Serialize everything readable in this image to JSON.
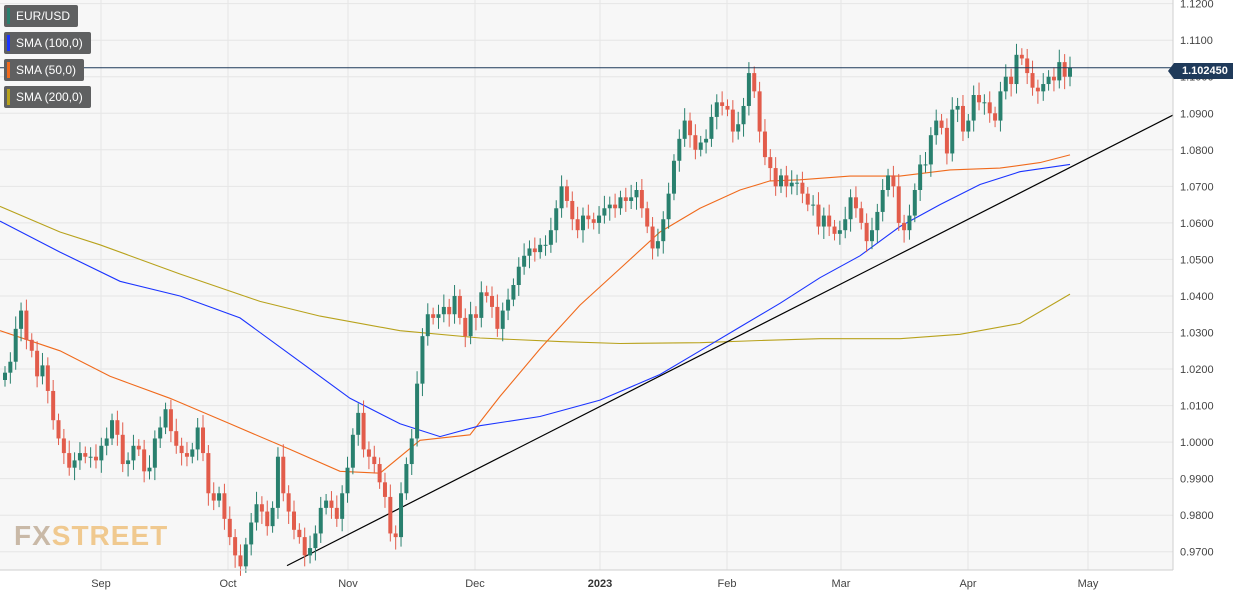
{
  "legend": [
    {
      "label": "EUR/USD",
      "color": "#29806e"
    },
    {
      "label": "SMA (100,0)",
      "color": "#1b34ff"
    },
    {
      "label": "SMA (50,0)",
      "color": "#f06a1c"
    },
    {
      "label": "SMA (200,0)",
      "color": "#b8a21c"
    }
  ],
  "current_price": "1.102450",
  "logo": {
    "part1": "FX",
    "part2": "STREET"
  },
  "chart_data": {
    "type": "candlestick",
    "y_axis": {
      "min": 0.965,
      "max": 1.121,
      "ticks": [
        "1.1200",
        "1.1100",
        "1.1000",
        "1.0900",
        "1.0800",
        "1.0700",
        "1.0600",
        "1.0500",
        "1.0400",
        "1.0300",
        "1.0200",
        "1.0100",
        "1.0000",
        "0.9900",
        "0.9800",
        "0.9700"
      ],
      "tick_values": [
        1.12,
        1.11,
        1.1,
        1.09,
        1.08,
        1.07,
        1.06,
        1.05,
        1.04,
        1.03,
        1.02,
        1.01,
        1.0,
        0.99,
        0.98,
        0.97
      ]
    },
    "x_axis": {
      "labels": [
        "Sep",
        "Oct",
        "Nov",
        "Dec",
        "2023",
        "Feb",
        "Mar",
        "Apr",
        "May"
      ],
      "bold_labels": [
        "2023"
      ]
    },
    "current_price_value": 1.10245,
    "grid": true,
    "colors": {
      "up": "#29806e",
      "down": "#e25c4b",
      "sma100": "#1b34ff",
      "sma50": "#f06a1c",
      "sma200": "#b8a21c",
      "trendline": "#000000"
    },
    "candles_close": [
      1.019,
      1.022,
      1.031,
      1.036,
      1.028,
      1.025,
      1.018,
      1.021,
      1.014,
      1.006,
      1.001,
      0.997,
      0.993,
      0.995,
      0.997,
      0.996,
      0.996,
      0.995,
      0.999,
      1.001,
      1.006,
      1.002,
      0.994,
      0.995,
      0.999,
      0.998,
      0.992,
      0.993,
      1.001,
      1.004,
      1.009,
      1.003,
      0.999,
      0.997,
      0.996,
      0.998,
      1.004,
      0.997,
      0.986,
      0.984,
      0.986,
      0.979,
      0.974,
      0.969,
      0.966,
      0.972,
      0.978,
      0.983,
      0.981,
      0.977,
      0.982,
      0.996,
      0.986,
      0.981,
      0.976,
      0.974,
      0.969,
      0.971,
      0.975,
      0.982,
      0.984,
      0.982,
      0.979,
      0.986,
      0.993,
      1.002,
      1.008,
      0.998,
      0.996,
      0.994,
      0.989,
      0.985,
      0.975,
      0.974,
      0.986,
      0.994,
      1.001,
      1.016,
      1.029,
      1.035,
      1.034,
      1.035,
      1.037,
      1.035,
      1.04,
      1.034,
      1.029,
      1.035,
      1.034,
      1.041,
      1.04,
      1.037,
      1.031,
      1.036,
      1.039,
      1.043,
      1.048,
      1.051,
      1.053,
      1.052,
      1.054,
      1.054,
      1.058,
      1.064,
      1.07,
      1.066,
      1.061,
      1.058,
      1.062,
      1.061,
      1.06,
      1.062,
      1.064,
      1.065,
      1.064,
      1.067,
      1.066,
      1.067,
      1.069,
      1.064,
      1.059,
      1.053,
      1.055,
      1.061,
      1.068,
      1.077,
      1.083,
      1.088,
      1.084,
      1.08,
      1.082,
      1.083,
      1.089,
      1.093,
      1.092,
      1.091,
      1.085,
      1.087,
      1.092,
      1.101,
      1.096,
      1.085,
      1.078,
      1.075,
      1.07,
      1.073,
      1.07,
      1.071,
      1.071,
      1.068,
      1.065,
      1.065,
      1.059,
      1.062,
      1.059,
      1.057,
      1.058,
      1.061,
      1.067,
      1.064,
      1.06,
      1.055,
      1.058,
      1.063,
      1.069,
      1.073,
      1.07,
      1.06,
      1.058,
      1.062,
      1.069,
      1.076,
      1.076,
      1.084,
      1.088,
      1.086,
      1.079,
      1.091,
      1.092,
      1.085,
      1.088,
      1.095,
      1.093,
      1.093,
      1.09,
      1.088,
      1.096,
      1.1,
      1.098,
      1.106,
      1.105,
      1.101,
      1.097,
      1.096,
      1.098,
      1.1,
      1.099,
      1.104,
      1.1,
      1.1025
    ]
  }
}
